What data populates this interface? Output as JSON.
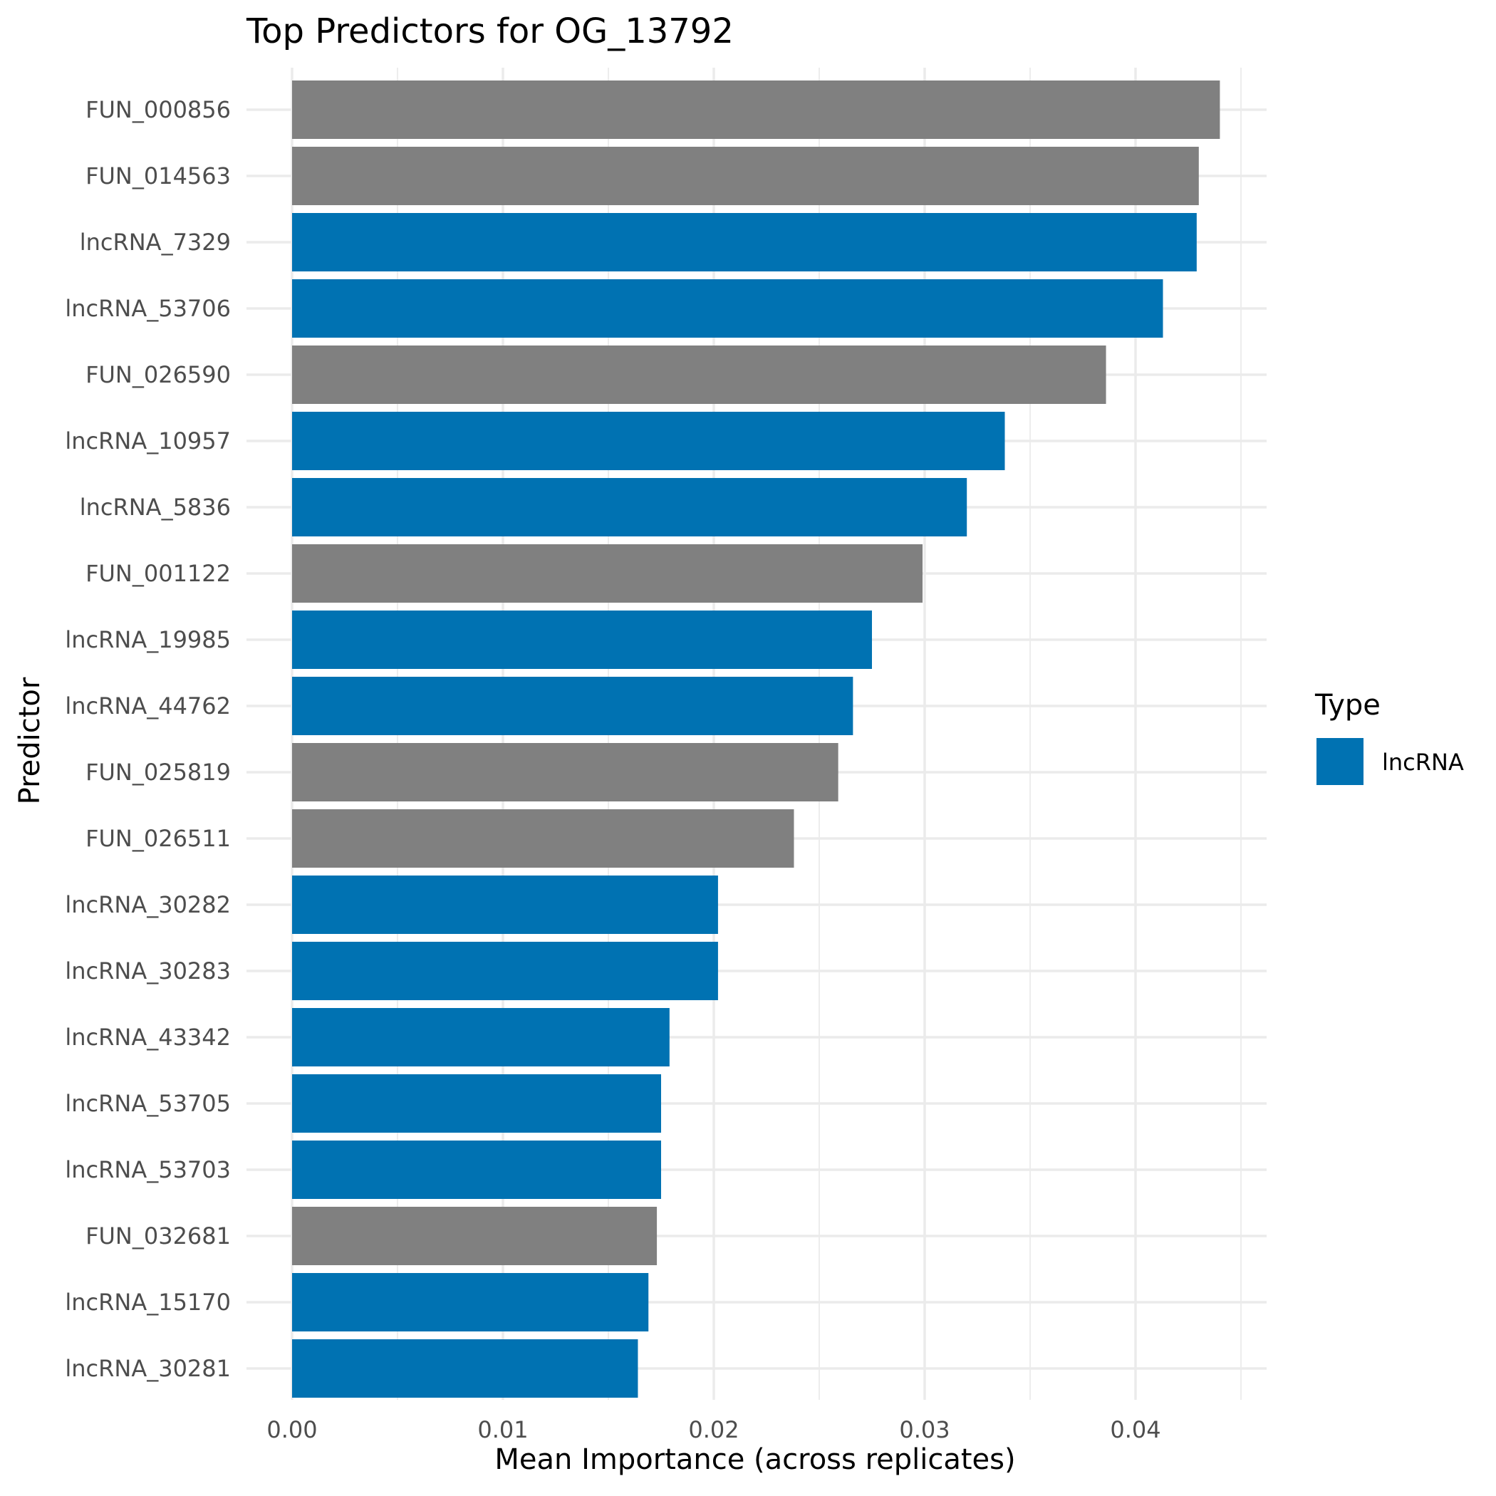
{
  "chart_data": {
    "type": "bar",
    "orientation": "horizontal",
    "title": "Top Predictors for OG_13792",
    "xlabel": "Mean Importance (across replicates)",
    "ylabel": "Predictor",
    "xlim": [
      0,
      0.046
    ],
    "x_ticks": [
      "0.00",
      "0.01",
      "0.02",
      "0.03",
      "0.04"
    ],
    "x_tick_values": [
      0,
      0.01,
      0.02,
      0.03,
      0.04
    ],
    "grid": true,
    "legend": {
      "title": "Type",
      "placement": "right",
      "entries": [
        {
          "label": "lncRNA",
          "color": "#0072B2"
        }
      ]
    },
    "colors": {
      "lncRNA": "#0072B2",
      "other": "#808080"
    },
    "categories": [
      "FUN_000856",
      "FUN_014563",
      "lncRNA_7329",
      "lncRNA_53706",
      "FUN_026590",
      "lncRNA_10957",
      "lncRNA_5836",
      "FUN_001122",
      "lncRNA_19985",
      "lncRNA_44762",
      "FUN_025819",
      "FUN_026511",
      "lncRNA_30282",
      "lncRNA_30283",
      "lncRNA_43342",
      "lncRNA_53705",
      "lncRNA_53703",
      "FUN_032681",
      "lncRNA_15170",
      "lncRNA_30281"
    ],
    "values": [
      0.044,
      0.043,
      0.0429,
      0.0413,
      0.0386,
      0.0338,
      0.032,
      0.0299,
      0.0275,
      0.0266,
      0.0259,
      0.0238,
      0.0202,
      0.0202,
      0.0179,
      0.0175,
      0.0175,
      0.0173,
      0.0169,
      0.0164
    ],
    "types": [
      "other",
      "other",
      "lncRNA",
      "lncRNA",
      "other",
      "lncRNA",
      "lncRNA",
      "other",
      "lncRNA",
      "lncRNA",
      "other",
      "other",
      "lncRNA",
      "lncRNA",
      "lncRNA",
      "lncRNA",
      "lncRNA",
      "other",
      "lncRNA",
      "lncRNA"
    ]
  }
}
